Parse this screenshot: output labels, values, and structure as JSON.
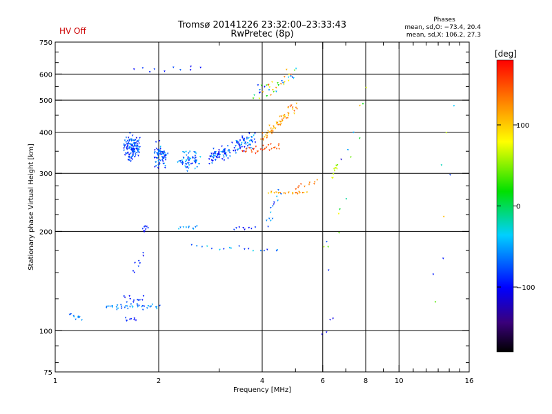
{
  "header": {
    "title_line1": "Tromsø 20141226 23:32:00–23:33:43",
    "title_line2": "RwPretec (8p)",
    "hv_status": "HV Off",
    "hv_color": "#cc0000",
    "stats_heading": "Phases",
    "stats_o": "mean, sd,O: −73.4, 20.4",
    "stats_x": "mean, sd,X: 106.2, 27.3"
  },
  "colorbar": {
    "label": "[deg]",
    "tick_labels": [
      "100",
      "0",
      "−100"
    ],
    "tick_values": [
      100,
      0,
      -100
    ],
    "range": [
      -180,
      180
    ]
  },
  "chart_data": {
    "type": "scatter",
    "xlabel": "Frequency [MHz]",
    "ylabel": "Stationary phase Virtual Height [km]",
    "xscale": "log",
    "yscale": "log",
    "xlim": [
      1,
      16
    ],
    "ylim": [
      75,
      750
    ],
    "x_ticks": [
      1,
      2,
      4,
      6,
      8,
      10,
      16
    ],
    "x_tick_labels": [
      "1",
      "2",
      "4",
      "6",
      "8",
      "10",
      "16"
    ],
    "x_minor_ticks": [
      3,
      5,
      7,
      9,
      11,
      12,
      13,
      14,
      15
    ],
    "y_ticks": [
      75,
      100,
      200,
      300,
      400,
      500,
      600,
      750
    ],
    "y_tick_labels": [
      "75",
      "100",
      "200",
      "300",
      "400",
      "500",
      "600",
      "750"
    ],
    "y_minor_ticks": [
      80,
      90,
      125,
      150,
      175,
      225,
      250,
      275,
      350,
      450,
      550,
      650,
      700
    ],
    "x_grid": [
      2,
      4,
      6,
      8,
      10
    ],
    "y_grid": [
      100,
      200,
      300,
      400,
      500,
      600
    ],
    "colors": {
      "grid": "#000000"
    },
    "series": [
      {
        "f": [
          1.1,
          1.2
        ],
        "h": [
          110,
          110
        ],
        "n": 10,
        "df": 0.03,
        "dh": 0.03,
        "ph": [
          -80,
          -40
        ]
      },
      {
        "f": [
          1.4,
          2.0
        ],
        "h": [
          118,
          118
        ],
        "n": 40,
        "df": 0.02,
        "dh": 0.03,
        "ph": [
          -90,
          -40
        ]
      },
      {
        "f": [
          1.6,
          1.8
        ],
        "h": [
          125,
          125
        ],
        "n": 12,
        "df": 0.02,
        "dh": 0.04,
        "ph": [
          -110,
          -70
        ]
      },
      {
        "f": [
          1.6,
          1.72
        ],
        "h": [
          108,
          108
        ],
        "n": 8,
        "df": 0.02,
        "dh": 0.02,
        "ph": [
          -110,
          -80
        ]
      },
      {
        "f": [
          1.7,
          1.8
        ],
        "h": [
          150,
          170
        ],
        "n": 8,
        "df": 0.02,
        "dh": 0.05,
        "ph": [
          -110,
          -70
        ]
      },
      {
        "f": [
          1.8,
          1.85
        ],
        "h": [
          200,
          205
        ],
        "n": 10,
        "df": 0.02,
        "dh": 0.03,
        "ph": [
          -110,
          -80
        ]
      },
      {
        "f": [
          1.6,
          1.75
        ],
        "h": [
          360,
          360
        ],
        "n": 130,
        "df": 0.03,
        "dh": 0.12,
        "ph": [
          -110,
          -50
        ]
      },
      {
        "f": [
          1.95,
          2.1
        ],
        "h": [
          340,
          340
        ],
        "n": 70,
        "df": 0.03,
        "dh": 0.12,
        "ph": [
          -110,
          -40
        ]
      },
      {
        "f": [
          2.3,
          2.6
        ],
        "h": [
          330,
          330
        ],
        "n": 60,
        "df": 0.03,
        "dh": 0.1,
        "ph": [
          -100,
          -30
        ]
      },
      {
        "f": [
          2.8,
          3.2
        ],
        "h": [
          330,
          350
        ],
        "n": 70,
        "df": 0.03,
        "dh": 0.08,
        "ph": [
          -110,
          -40
        ]
      },
      {
        "f": [
          3.3,
          3.8
        ],
        "h": [
          360,
          380
        ],
        "n": 60,
        "df": 0.02,
        "dh": 0.08,
        "ph": [
          -110,
          -30
        ]
      },
      {
        "f": [
          3.5,
          4.5
        ],
        "h": [
          350,
          360
        ],
        "n": 30,
        "df": 0.02,
        "dh": 0.04,
        "ph": [
          140,
          170
        ]
      },
      {
        "f": [
          4.0,
          5.0
        ],
        "h": [
          380,
          480
        ],
        "n": 60,
        "df": 0.03,
        "dh": 0.05,
        "ph": [
          90,
          150
        ]
      },
      {
        "f": [
          3.8,
          5.0
        ],
        "h": [
          520,
          600
        ],
        "n": 40,
        "df": 0.04,
        "dh": 0.08,
        "ph": [
          -100,
          160
        ]
      },
      {
        "f": [
          4.2,
          5.4
        ],
        "h": [
          262,
          262
        ],
        "n": 22,
        "df": 0.02,
        "dh": 0.01,
        "ph": [
          90,
          150
        ]
      },
      {
        "f": [
          5.0,
          5.8
        ],
        "h": [
          270,
          285
        ],
        "n": 10,
        "df": 0.02,
        "dh": 0.02,
        "ph": [
          120,
          150
        ]
      },
      {
        "f": [
          4.1,
          4.5
        ],
        "h": [
          210,
          260
        ],
        "n": 14,
        "df": 0.03,
        "dh": 0.05,
        "ph": [
          -110,
          -40
        ]
      },
      {
        "f": [
          2.3,
          2.6
        ],
        "h": [
          205,
          205
        ],
        "n": 10,
        "df": 0.02,
        "dh": 0.02,
        "ph": [
          -70,
          -30
        ]
      },
      {
        "f": [
          3.3,
          3.8
        ],
        "h": [
          205,
          205
        ],
        "n": 8,
        "df": 0.02,
        "dh": 0.02,
        "ph": [
          -110,
          -80
        ]
      },
      {
        "f": [
          2.5,
          4.5
        ],
        "h": [
          180,
          175
        ],
        "n": 18,
        "df": 0.03,
        "dh": 0.02,
        "ph": [
          -100,
          -30
        ]
      },
      {
        "f": [
          6.4,
          6.6
        ],
        "h": [
          290,
          320
        ],
        "n": 10,
        "df": 0.01,
        "dh": 0.05,
        "ph": [
          40,
          80
        ]
      },
      {
        "f": [
          6.0,
          8.0
        ],
        "h": [
          150,
          550
        ],
        "n": 16,
        "df": 0.05,
        "dh": 0.25,
        "ph": [
          -120,
          150
        ]
      },
      {
        "f": [
          12.5,
          14.5
        ],
        "h": [
          130,
          450
        ],
        "n": 8,
        "df": 0.05,
        "dh": 0.25,
        "ph": [
          -100,
          110
        ]
      },
      {
        "f": [
          1.7,
          2.7
        ],
        "h": [
          620,
          620
        ],
        "n": 10,
        "df": 0.04,
        "dh": 0.03,
        "ph": [
          -110,
          -70
        ]
      },
      {
        "f": [
          6.0,
          6.4
        ],
        "h": [
          95,
          110
        ],
        "n": 4,
        "df": 0.02,
        "dh": 0.05,
        "ph": [
          -110,
          -100
        ]
      }
    ]
  }
}
